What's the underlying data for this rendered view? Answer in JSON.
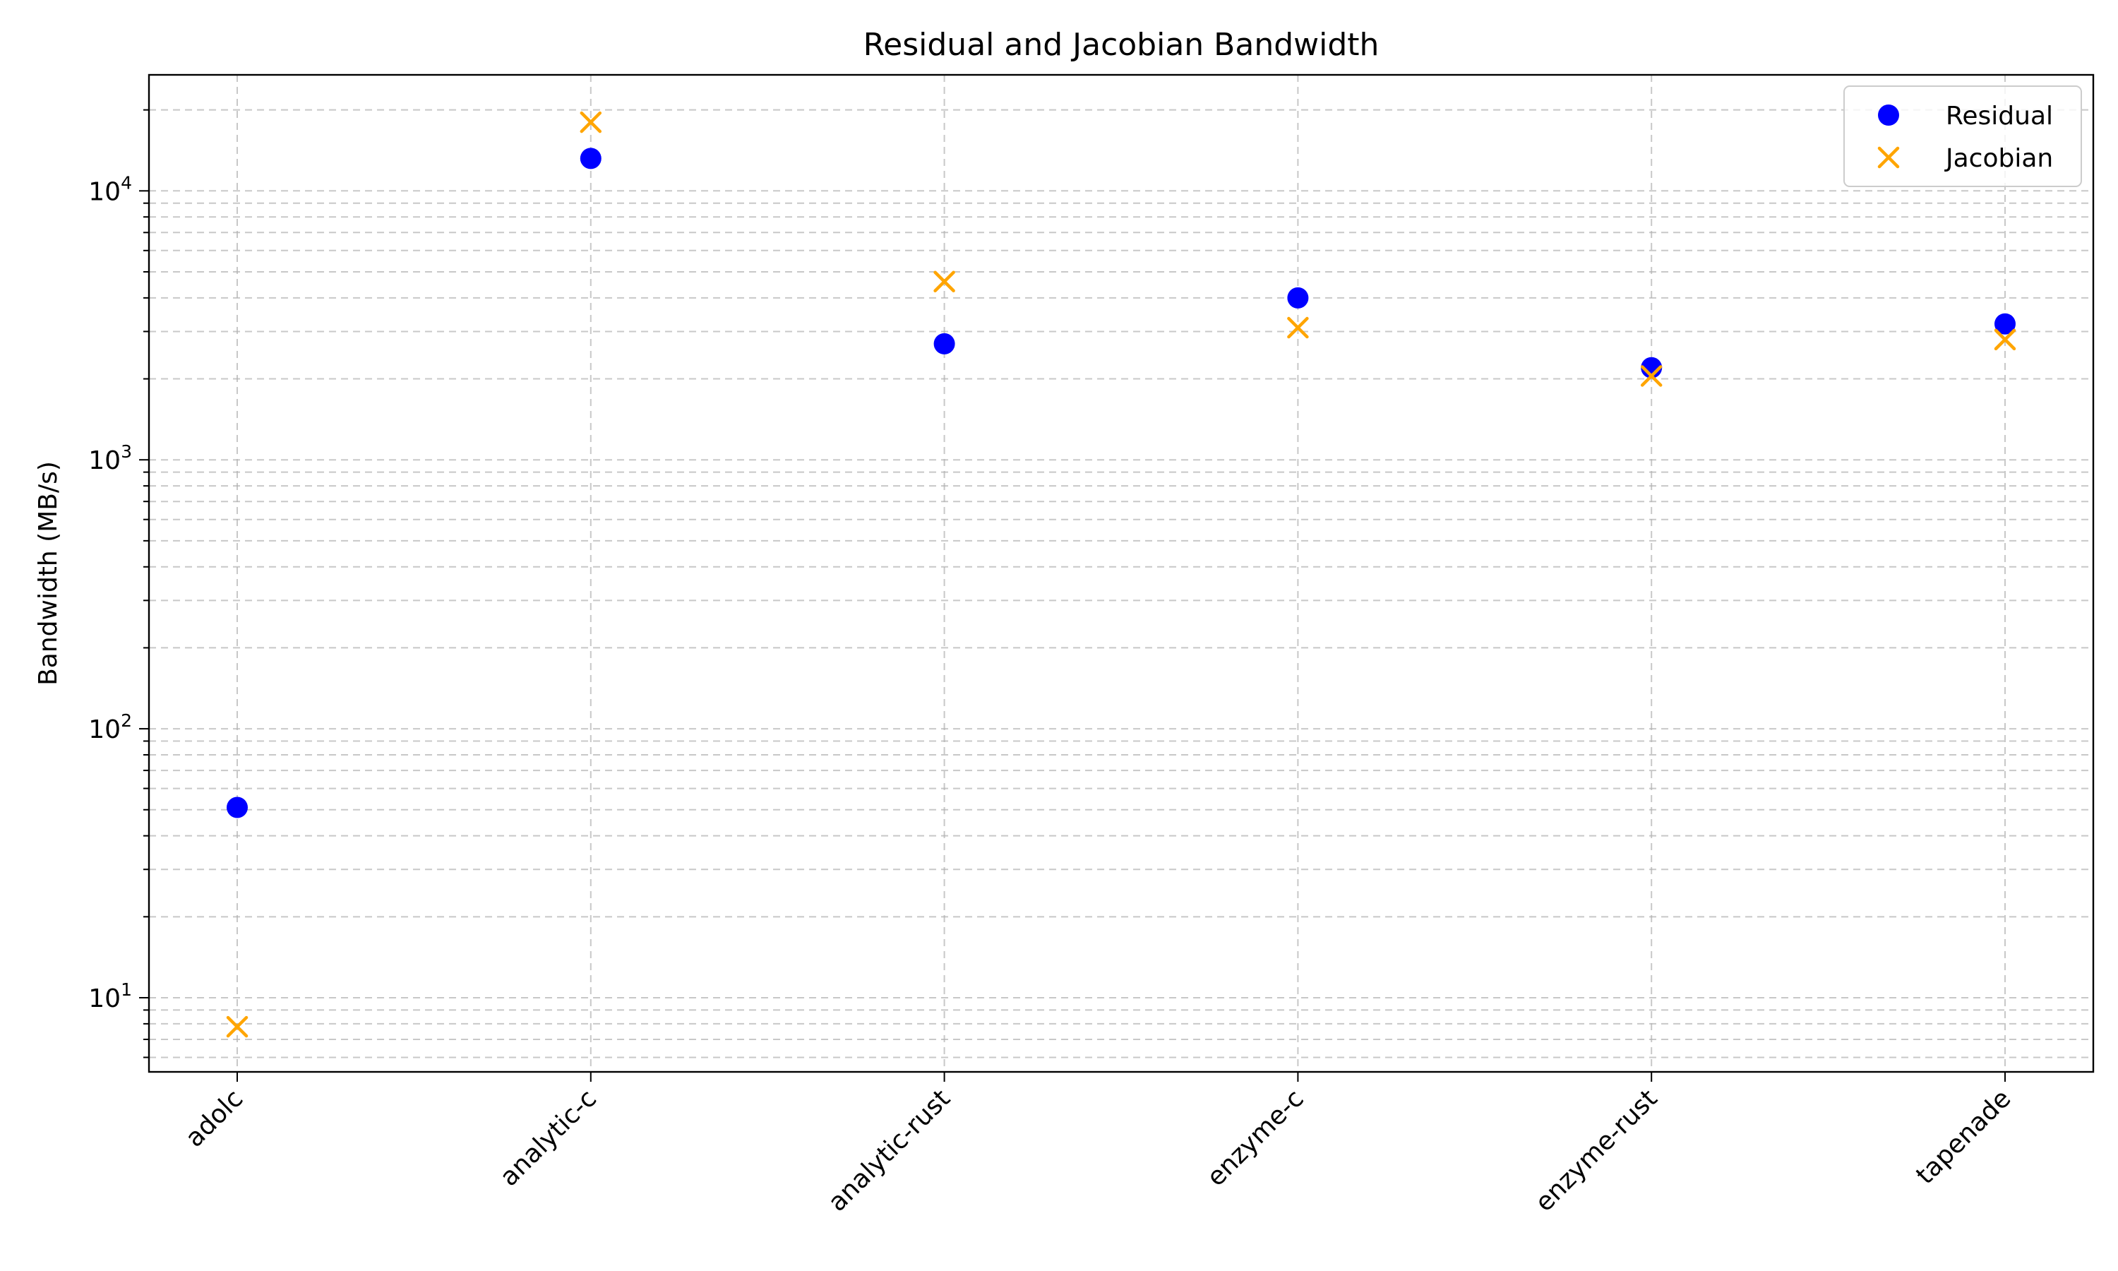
{
  "chart_data": {
    "type": "scatter",
    "title": "Residual and Jacobian Bandwidth",
    "xlabel": "",
    "ylabel": "Bandwidth (MB/s)",
    "y_scale": "log",
    "ylim": [
      5.3,
      27000
    ],
    "grid": true,
    "legend_position": "top-right",
    "categories": [
      "adolc",
      "analytic-c",
      "analytic-rust",
      "enzyme-c",
      "enzyme-rust",
      "tapenade"
    ],
    "y_tick_labels": [
      {
        "value": 10,
        "base": "10",
        "exp": "1"
      },
      {
        "value": 100,
        "base": "10",
        "exp": "2"
      },
      {
        "value": 1000,
        "base": "10",
        "exp": "3"
      },
      {
        "value": 10000,
        "base": "10",
        "exp": "4"
      }
    ],
    "series": [
      {
        "name": "Residual",
        "marker": "circle",
        "color": "#0000ff",
        "values": [
          51,
          13200,
          2700,
          4000,
          2200,
          3200
        ]
      },
      {
        "name": "Jacobian",
        "marker": "x",
        "color": "#ffa500",
        "values": [
          7.8,
          18000,
          4600,
          3100,
          2050,
          2800
        ]
      }
    ]
  }
}
